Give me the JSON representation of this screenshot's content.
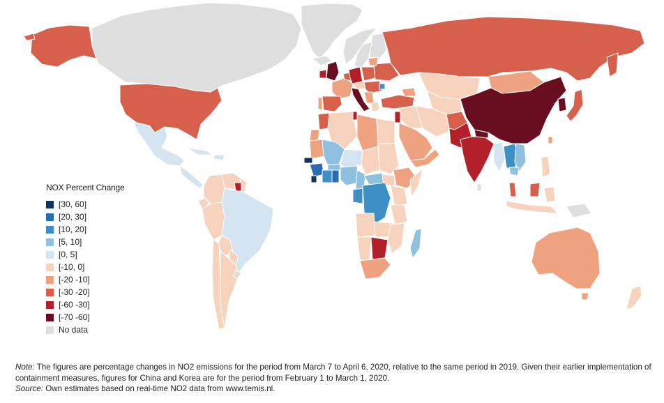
{
  "legend": {
    "title": "NOX Percent Change",
    "items": [
      {
        "label": "[30, 60]",
        "color": "#13335a"
      },
      {
        "label": "[20, 30]",
        "color": "#2c6ab1"
      },
      {
        "label": "[10, 20]",
        "color": "#3f8fc7"
      },
      {
        "label": "[5, 10]",
        "color": "#8fc0df"
      },
      {
        "label": "[0, 5]",
        "color": "#d4e5f1"
      },
      {
        "label": "[-10, 0]",
        "color": "#f7d3bd"
      },
      {
        "label": "[-20 -10]",
        "color": "#eea27f"
      },
      {
        "label": "[-30 -20]",
        "color": "#d7604d"
      },
      {
        "label": "[-60 -30]",
        "color": "#b3202a"
      },
      {
        "label": "[-70 -60]",
        "color": "#690d20"
      },
      {
        "label": "No data",
        "color": "#dedede"
      }
    ]
  },
  "notes": {
    "note_label": "Note:",
    "note_text": " The figures are percentage changes in NO2 emissions for the period from March 7 to April 6, 2020, relative to the same period in 2019. Given their earlier implementation of containment measures, figures for China and Korea are for the period from February 1 to March 1, 2020.",
    "source_label": "Source:",
    "source_text": "  Own estimates based on real-time NO2 data from www.temis.nl."
  }
}
